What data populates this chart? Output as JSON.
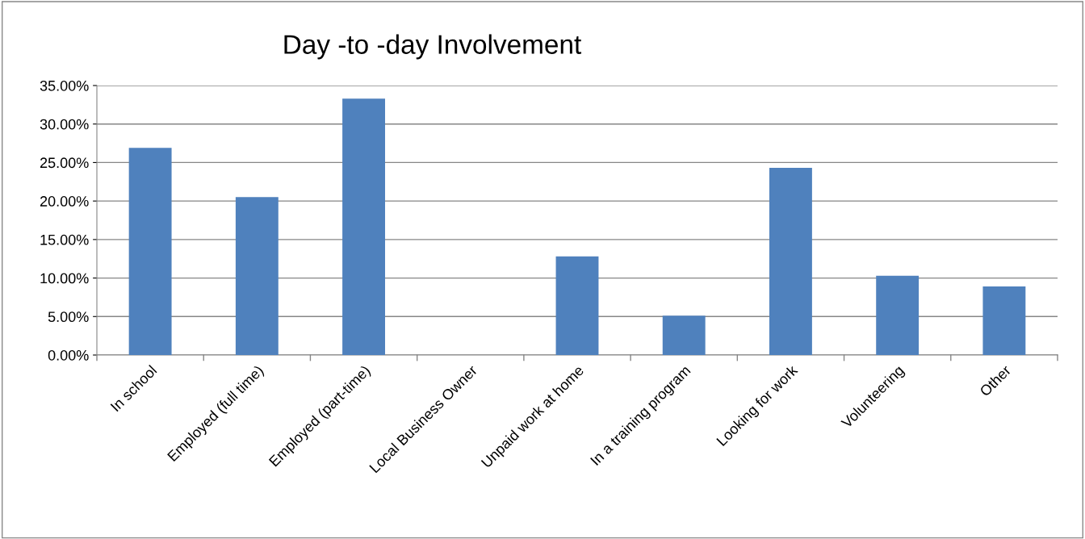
{
  "chart_data": {
    "type": "bar",
    "title": "Day -to -day Involvement",
    "categories": [
      "In school",
      "Employed (full time)",
      "Employed (part-time)",
      "Local Business Owner",
      "Unpaid work at home",
      "In a training program",
      "Looking for work",
      "Volunteering",
      "Other"
    ],
    "values": [
      26.9,
      20.5,
      33.3,
      0,
      12.8,
      5.1,
      24.3,
      10.3,
      8.9
    ],
    "color": "#4f81bd",
    "ylim": [
      0,
      35
    ],
    "yticks": [
      {
        "value": 0,
        "label": "0.00%"
      },
      {
        "value": 5,
        "label": "5.00%"
      },
      {
        "value": 10,
        "label": "10.00%"
      },
      {
        "value": 15,
        "label": "15.00%"
      },
      {
        "value": 20,
        "label": "20.00%"
      },
      {
        "value": 25,
        "label": "25.00%"
      },
      {
        "value": 30,
        "label": "30.00%"
      },
      {
        "value": 35,
        "label": "35.00%"
      }
    ],
    "grid": "y",
    "legend": false
  }
}
